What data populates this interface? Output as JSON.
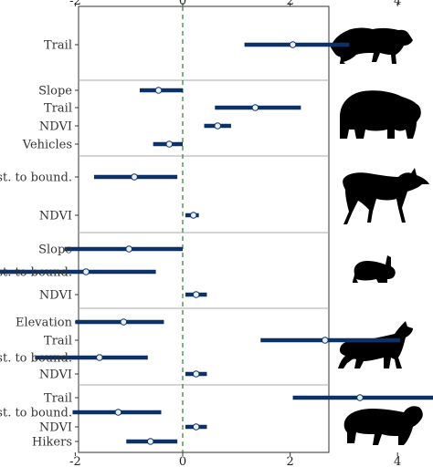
{
  "chart_data": {
    "type": "forest-plot",
    "x_ticks": [
      -2,
      0,
      2,
      4
    ],
    "xlim": [
      -3.8,
      5.5
    ],
    "color_ci": "#0b3166",
    "color_zero_line": "#2e7d32",
    "panels": [
      {
        "animal_icon": "cougar-silhouette",
        "rows": [
          {
            "label": "Trail",
            "estimate": 2.05,
            "lower": 1.15,
            "upper": 3.1
          }
        ]
      },
      {
        "animal_icon": "bear-silhouette",
        "rows": [
          {
            "label": "Slope",
            "estimate": -0.45,
            "lower": -0.8,
            "upper": 0.0
          },
          {
            "label": "Trail",
            "estimate": 1.35,
            "lower": 0.6,
            "upper": 2.2
          },
          {
            "label": "NDVI",
            "estimate": 0.65,
            "lower": 0.4,
            "upper": 0.9
          },
          {
            "label": "Vehicles",
            "estimate": -0.25,
            "lower": -0.55,
            "upper": 0.0
          }
        ]
      },
      {
        "animal_icon": "deer-silhouette",
        "rows": [
          {
            "label": "Dist. to bound.",
            "estimate": -0.9,
            "lower": -1.65,
            "upper": -0.1
          },
          {
            "label": "NDVI",
            "estimate": 0.2,
            "lower": 0.05,
            "upper": 0.3
          }
        ]
      },
      {
        "animal_icon": "rabbit-silhouette",
        "rows": [
          {
            "label": "Slope",
            "estimate": -1.0,
            "lower": -2.2,
            "upper": 0.0
          },
          {
            "label": "Dist. to bound.",
            "estimate": -1.8,
            "lower": -3.5,
            "upper": -0.5
          },
          {
            "label": "NDVI",
            "estimate": 0.25,
            "lower": 0.05,
            "upper": 0.45
          }
        ]
      },
      {
        "animal_icon": "fox-silhouette",
        "rows": [
          {
            "label": "Elevation",
            "estimate": -1.1,
            "lower": -2.0,
            "upper": -0.35
          },
          {
            "label": "Trail",
            "estimate": 2.65,
            "lower": 1.45,
            "upper": 4.05
          },
          {
            "label": "Dist. to bound.",
            "estimate": -1.55,
            "lower": -2.75,
            "upper": -0.65
          },
          {
            "label": "NDVI",
            "estimate": 0.25,
            "lower": 0.05,
            "upper": 0.45
          }
        ]
      },
      {
        "animal_icon": "bobcat-silhouette",
        "rows": [
          {
            "label": "Trail",
            "estimate": 3.3,
            "lower": 2.05,
            "upper": 4.75
          },
          {
            "label": "Dist. to bound.",
            "estimate": -1.2,
            "lower": -2.05,
            "upper": -0.4
          },
          {
            "label": "NDVI",
            "estimate": 0.25,
            "lower": 0.05,
            "upper": 0.45
          },
          {
            "label": "Hikers",
            "estimate": -0.6,
            "lower": -1.05,
            "upper": -0.1
          }
        ]
      }
    ]
  }
}
